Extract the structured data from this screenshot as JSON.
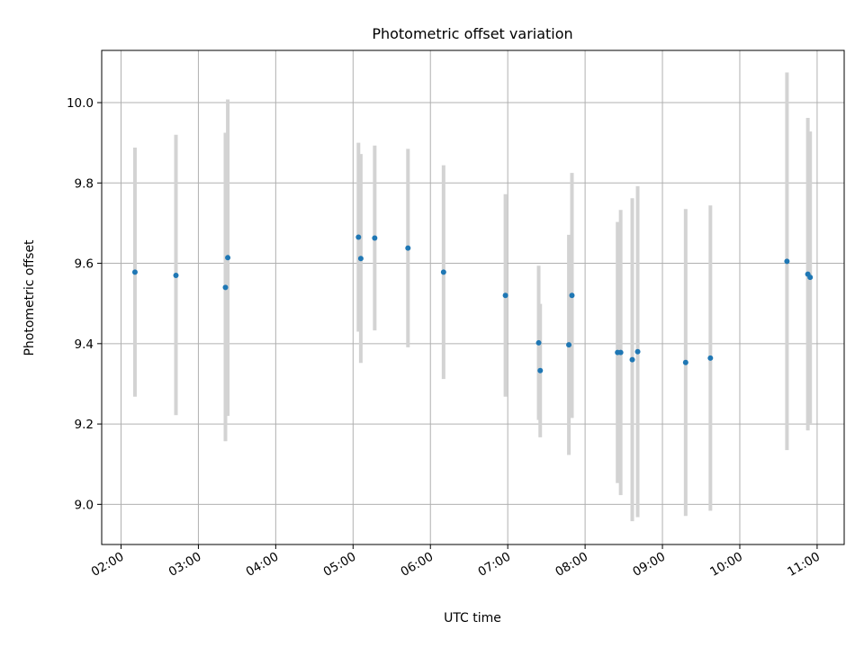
{
  "chart_data": {
    "type": "scatter",
    "title": "Photometric offset variation",
    "xlabel": "UTC time",
    "ylabel": "Photometric offset",
    "x_unit": "hours UTC",
    "xlim": [
      1.75,
      11.35
    ],
    "ylim": [
      8.9,
      10.13
    ],
    "x_ticks": [
      {
        "value": 2,
        "label": "02:00"
      },
      {
        "value": 3,
        "label": "03:00"
      },
      {
        "value": 4,
        "label": "04:00"
      },
      {
        "value": 5,
        "label": "05:00"
      },
      {
        "value": 6,
        "label": "06:00"
      },
      {
        "value": 7,
        "label": "07:00"
      },
      {
        "value": 8,
        "label": "08:00"
      },
      {
        "value": 9,
        "label": "09:00"
      },
      {
        "value": 10,
        "label": "10:00"
      },
      {
        "value": 11,
        "label": "11:00"
      }
    ],
    "y_ticks": [
      {
        "value": 9.0,
        "label": "9.0"
      },
      {
        "value": 9.2,
        "label": "9.2"
      },
      {
        "value": 9.4,
        "label": "9.4"
      },
      {
        "value": 9.6,
        "label": "9.6"
      },
      {
        "value": 9.8,
        "label": "9.8"
      },
      {
        "value": 10.0,
        "label": "10.0"
      }
    ],
    "grid": true,
    "point_color": "#1f77b4",
    "errorbar_color": "#d3d3d3",
    "points": [
      {
        "x": 2.18,
        "y": 9.578,
        "lo": 9.268,
        "hi": 9.888
      },
      {
        "x": 2.71,
        "y": 9.57,
        "lo": 9.222,
        "hi": 9.92
      },
      {
        "x": 3.35,
        "y": 9.54,
        "lo": 9.157,
        "hi": 9.925
      },
      {
        "x": 3.38,
        "y": 9.614,
        "lo": 9.22,
        "hi": 10.008
      },
      {
        "x": 5.07,
        "y": 9.665,
        "lo": 9.43,
        "hi": 9.9
      },
      {
        "x": 5.1,
        "y": 9.612,
        "lo": 9.352,
        "hi": 9.872
      },
      {
        "x": 5.28,
        "y": 9.663,
        "lo": 9.433,
        "hi": 9.893
      },
      {
        "x": 5.71,
        "y": 9.638,
        "lo": 9.391,
        "hi": 9.885
      },
      {
        "x": 6.17,
        "y": 9.578,
        "lo": 9.312,
        "hi": 9.844
      },
      {
        "x": 6.97,
        "y": 9.52,
        "lo": 9.268,
        "hi": 9.772
      },
      {
        "x": 7.4,
        "y": 9.402,
        "lo": 9.21,
        "hi": 9.594
      },
      {
        "x": 7.42,
        "y": 9.333,
        "lo": 9.167,
        "hi": 9.499
      },
      {
        "x": 7.79,
        "y": 9.397,
        "lo": 9.123,
        "hi": 9.671
      },
      {
        "x": 7.83,
        "y": 9.52,
        "lo": 9.215,
        "hi": 9.825
      },
      {
        "x": 8.42,
        "y": 9.378,
        "lo": 9.053,
        "hi": 9.703
      },
      {
        "x": 8.46,
        "y": 9.378,
        "lo": 9.023,
        "hi": 9.733
      },
      {
        "x": 8.61,
        "y": 9.36,
        "lo": 8.958,
        "hi": 9.762
      },
      {
        "x": 8.68,
        "y": 9.38,
        "lo": 8.968,
        "hi": 9.792
      },
      {
        "x": 9.3,
        "y": 9.353,
        "lo": 8.971,
        "hi": 9.735
      },
      {
        "x": 9.62,
        "y": 9.364,
        "lo": 8.984,
        "hi": 9.744
      },
      {
        "x": 10.61,
        "y": 9.605,
        "lo": 9.135,
        "hi": 10.075
      },
      {
        "x": 10.88,
        "y": 9.573,
        "lo": 9.184,
        "hi": 9.962
      },
      {
        "x": 10.91,
        "y": 9.565,
        "lo": 9.202,
        "hi": 9.928
      }
    ]
  }
}
